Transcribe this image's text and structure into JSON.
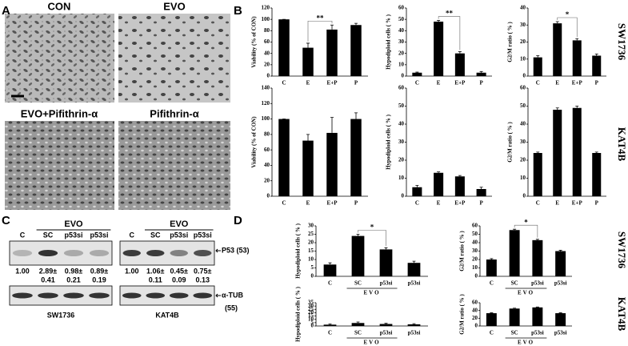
{
  "panel_labels": [
    "A",
    "B",
    "C",
    "D"
  ],
  "panel_A": {
    "images": [
      "CON",
      "EVO",
      "EVO+Pifithrin-α",
      "Pifithrin-α"
    ]
  },
  "row_labels_B": [
    "SW1736",
    "KAT4B"
  ],
  "row_labels_D": [
    "SW1736",
    "KAT4B"
  ],
  "panel_C": {
    "blots": [
      {
        "group": "EVO",
        "lanes": [
          "C",
          "SC",
          "p53si",
          "p53si"
        ],
        "ratios": [
          "1.00",
          "2.89±",
          "0.98±",
          "0.89±"
        ],
        "sd": [
          "0.41",
          "0.21",
          "0.19"
        ],
        "cell_line": "SW1736"
      },
      {
        "group": "EVO",
        "lanes": [
          "C",
          "SC",
          "p53si",
          "p53si"
        ],
        "ratios": [
          "1.00",
          "1.06±",
          "0.45±",
          "0.75±"
        ],
        "sd": [
          "0.11",
          "0.09",
          "0.13"
        ],
        "cell_line": "KAT4B"
      }
    ],
    "markers": [
      "P53 (53)",
      "α-TUB",
      "(55)"
    ]
  },
  "chart_data": [
    {
      "type": "bar",
      "ylabel": "Viability (% of CON)",
      "categories": [
        "C",
        "E",
        "E+P",
        "P"
      ],
      "values": [
        100,
        50,
        82,
        90
      ],
      "errors": [
        0,
        8,
        8,
        3
      ],
      "color": "#000000",
      "ylim": [
        0,
        120
      ],
      "yticks": [
        0,
        20,
        40,
        60,
        80,
        100,
        120
      ],
      "significance_label": "**"
    },
    {
      "type": "bar",
      "ylabel": "Hypodiploid cells ( % )",
      "categories": [
        "C",
        "E",
        "E+P",
        "P"
      ],
      "values": [
        3,
        48,
        20,
        3
      ],
      "errors": [
        0.5,
        1,
        1.5,
        1
      ],
      "color": "#000000",
      "ylim": [
        0,
        60
      ],
      "yticks": [
        0,
        10,
        20,
        30,
        40,
        50,
        60
      ],
      "significance_label": "**"
    },
    {
      "type": "bar",
      "ylabel": "G2/M ratio ( % )",
      "categories": [
        "C",
        "E",
        "E+P",
        "P"
      ],
      "values": [
        11,
        31,
        21,
        12
      ],
      "errors": [
        1,
        1,
        1,
        1
      ],
      "color": "#000000",
      "ylim": [
        0,
        40
      ],
      "yticks": [
        0,
        10,
        20,
        30,
        40
      ],
      "significance_label": "*"
    },
    {
      "type": "bar",
      "ylabel": "Viability (% of CON)",
      "categories": [
        "C",
        "E",
        "E+P",
        "P"
      ],
      "values": [
        100,
        72,
        82,
        100
      ],
      "errors": [
        0,
        8,
        20,
        8
      ],
      "color": "#000000",
      "ylim": [
        0,
        140
      ],
      "yticks": [
        0,
        20,
        40,
        60,
        80,
        100,
        120,
        140
      ]
    },
    {
      "type": "bar",
      "ylabel": "Hypodiploid cells ( % )",
      "categories": [
        "C",
        "E",
        "E+P",
        "P"
      ],
      "values": [
        5,
        13,
        11,
        4
      ],
      "errors": [
        1,
        0.5,
        0.5,
        1
      ],
      "color": "#000000",
      "ylim": [
        0,
        60
      ],
      "yticks": [
        0,
        10,
        20,
        30,
        40,
        50,
        60
      ]
    },
    {
      "type": "bar",
      "ylabel": "G2/M ratio ( % )",
      "categories": [
        "C",
        "E",
        "E+P",
        "P"
      ],
      "values": [
        24,
        48,
        49,
        24
      ],
      "errors": [
        0.5,
        1,
        1,
        0.5
      ],
      "color": "#000000",
      "ylim": [
        0,
        60
      ],
      "yticks": [
        0,
        10,
        20,
        30,
        40,
        50,
        60
      ]
    },
    {
      "type": "bar",
      "ylabel": "Hypodiploid cells ( % )",
      "categories": [
        "C",
        "SC",
        "p53si",
        "p53si"
      ],
      "group_label": "EVO",
      "values": [
        7,
        24,
        16,
        8
      ],
      "errors": [
        1,
        1,
        1,
        1
      ],
      "color": "#000000",
      "ylim": [
        0,
        30
      ],
      "yticks": [
        0,
        5,
        10,
        15,
        20,
        25,
        30
      ],
      "significance_label": "*"
    },
    {
      "type": "bar",
      "ylabel": "G2/M ratio ( % )",
      "categories": [
        "C",
        "SC",
        "p53si",
        "p53si"
      ],
      "group_label": "EVO",
      "values": [
        20,
        55,
        43,
        30
      ],
      "errors": [
        1,
        1,
        1,
        1
      ],
      "color": "#000000",
      "ylim": [
        0,
        60
      ],
      "yticks": [
        0,
        10,
        20,
        30,
        40,
        50,
        60
      ],
      "significance_label": "*"
    },
    {
      "type": "bar",
      "ylabel": "Hypodiploid cells ( % )",
      "categories": [
        "C",
        "SC",
        "p53si",
        "p53si"
      ],
      "group_label": "EVO",
      "values": [
        2,
        4.5,
        3,
        2.5
      ],
      "errors": [
        1,
        1.5,
        1,
        1
      ],
      "color": "#000000",
      "ylim": [
        0,
        35
      ],
      "yticks": [
        0,
        5,
        10,
        15,
        20,
        25,
        30,
        35
      ]
    },
    {
      "type": "bar",
      "ylabel": "G2/M ratio ( % )",
      "categories": [
        "C",
        "SC",
        "p53si",
        "p53si"
      ],
      "group_label": "EVO",
      "values": [
        33,
        45,
        48,
        33
      ],
      "errors": [
        1,
        1,
        1,
        1
      ],
      "color": "#000000",
      "ylim": [
        0,
        60
      ],
      "yticks": [
        0,
        20,
        40,
        60
      ]
    }
  ]
}
